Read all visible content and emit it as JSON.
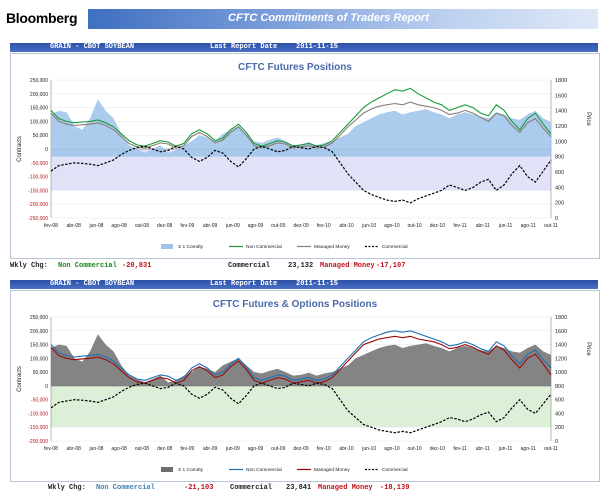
{
  "header": {
    "brand": "Bloomberg",
    "title": "CFTC Commitments of Traders Report"
  },
  "panels": [
    {
      "head_left": "GRAIN - CBOT SOYBEAN",
      "head_report": "Last Report Date",
      "head_date": "2011-11-15",
      "wkly": {
        "label": "Wkly Chg:",
        "nc_label": "Non Commercial",
        "nc_value": "-20,831",
        "c_label": "Commercial",
        "c_value": "23,132",
        "mm_label": "Managed Money",
        "mm_value": "-17,107"
      }
    },
    {
      "head_left": "GRAIN - CBOT SOYBEAN",
      "head_report": "Last Report Date",
      "head_date": "2011-11-15",
      "wkly": {
        "label": "Wkly Chg:",
        "nc_label": "Non Commercial",
        "nc_value": "-21,103",
        "c_label": "Commercial",
        "c_value": "23,841",
        "mm_label": "Managed Money",
        "mm_value": "-18,139"
      }
    }
  ],
  "chart_data": [
    {
      "type": "line",
      "title": "CFTC Futures Positions",
      "ylabel": "Contracts",
      "y2label": "Price",
      "ylim": [
        -250000,
        250000
      ],
      "yticks": [
        250000,
        200000,
        150000,
        100000,
        50000,
        0,
        -50000,
        -100000,
        -150000,
        -200000,
        -250000
      ],
      "ytick_labels": [
        "250,000",
        "200,000",
        "150,000",
        "100,000",
        "50,000",
        "0",
        "-50,000",
        "-100,000",
        "-150,000",
        "-200,000",
        "-250,000"
      ],
      "y2lim": [
        0,
        1800
      ],
      "y2ticks": [
        1800,
        1600,
        1400,
        1200,
        1000,
        800,
        600,
        400,
        200,
        0
      ],
      "x_labels": [
        "fev-08",
        "abr-08",
        "jun-08",
        "ago-08",
        "out-08",
        "dez-08",
        "fev-09",
        "abr-09",
        "jun-09",
        "ago-09",
        "out-09",
        "dez-09",
        "fev-10",
        "abr-10",
        "jun-10",
        "ago-10",
        "out-10",
        "dez-10",
        "fev-11",
        "abr-11",
        "jun-11",
        "ago-11",
        "out-11"
      ],
      "series": [
        {
          "name": "S 1 Comdty",
          "style": "area",
          "color": "#9dc3ea",
          "axis": "right",
          "values": [
            1350,
            1400,
            1380,
            1200,
            1150,
            1300,
            1550,
            1400,
            1300,
            1100,
            950,
            900,
            850,
            900,
            950,
            850,
            880,
            950,
            1000,
            1080,
            1050,
            1000,
            1100,
            1150,
            1200,
            1100,
            1000,
            980,
            1020,
            1050,
            1000,
            950,
            960,
            990,
            950,
            980,
            1000,
            1050,
            1100,
            1200,
            1250,
            1300,
            1350,
            1380,
            1400,
            1350,
            1380,
            1400,
            1420,
            1380,
            1350,
            1300,
            1350,
            1380,
            1350,
            1320,
            1300,
            1380,
            1350,
            1300,
            1280,
            1350,
            1400,
            1300,
            1250
          ]
        },
        {
          "name": "Non Commercial",
          "style": "line",
          "color": "#1a9a3a",
          "axis": "left",
          "values": [
            140000,
            110000,
            100000,
            95000,
            98000,
            100000,
            105000,
            95000,
            80000,
            55000,
            30000,
            15000,
            10000,
            20000,
            30000,
            25000,
            10000,
            20000,
            55000,
            70000,
            55000,
            30000,
            40000,
            70000,
            90000,
            60000,
            20000,
            10000,
            20000,
            30000,
            25000,
            10000,
            15000,
            20000,
            10000,
            15000,
            30000,
            60000,
            90000,
            120000,
            150000,
            170000,
            185000,
            200000,
            215000,
            210000,
            220000,
            200000,
            185000,
            170000,
            160000,
            140000,
            150000,
            160000,
            150000,
            130000,
            120000,
            160000,
            140000,
            100000,
            70000,
            110000,
            130000,
            90000,
            55000
          ]
        },
        {
          "name": "Managed Money",
          "style": "line",
          "color": "#8a7f78",
          "axis": "left",
          "values": [
            130000,
            100000,
            90000,
            85000,
            88000,
            90000,
            95000,
            85000,
            70000,
            45000,
            20000,
            8000,
            4000,
            12000,
            22000,
            18000,
            4000,
            12000,
            45000,
            60000,
            45000,
            22000,
            32000,
            60000,
            80000,
            50000,
            12000,
            4000,
            12000,
            22000,
            18000,
            4000,
            8000,
            12000,
            4000,
            8000,
            22000,
            50000,
            80000,
            105000,
            130000,
            145000,
            155000,
            160000,
            165000,
            160000,
            170000,
            160000,
            155000,
            150000,
            140000,
            125000,
            130000,
            140000,
            130000,
            115000,
            100000,
            130000,
            120000,
            85000,
            60000,
            95000,
            110000,
            75000,
            45000
          ]
        },
        {
          "name": "Commercial",
          "style": "dashed",
          "color": "#000000",
          "axis": "left",
          "values": [
            -80000,
            -60000,
            -55000,
            -50000,
            -52000,
            -55000,
            -60000,
            -50000,
            -40000,
            -20000,
            -5000,
            5000,
            10000,
            0,
            -10000,
            -5000,
            10000,
            0,
            -30000,
            -45000,
            -30000,
            -5000,
            -15000,
            -45000,
            -65000,
            -35000,
            0,
            10000,
            0,
            -10000,
            -5000,
            10000,
            5000,
            0,
            10000,
            5000,
            -10000,
            -50000,
            -90000,
            -120000,
            -150000,
            -165000,
            -175000,
            -185000,
            -190000,
            -185000,
            -195000,
            -180000,
            -170000,
            -160000,
            -150000,
            -130000,
            -140000,
            -150000,
            -140000,
            -120000,
            -110000,
            -150000,
            -130000,
            -90000,
            -60000,
            -100000,
            -120000,
            -80000,
            -40000
          ]
        }
      ]
    },
    {
      "type": "line",
      "title": "CFTC Futures & Options Positions",
      "ylabel": "Contracts",
      "y2label": "Price",
      "ylim": [
        -200000,
        250000
      ],
      "yticks": [
        250000,
        200000,
        150000,
        100000,
        50000,
        0,
        -50000,
        -100000,
        -150000,
        -200000
      ],
      "ytick_labels": [
        "250,000",
        "200,000",
        "150,000",
        "100,000",
        "50,000",
        "0",
        "-50,000",
        "-100,000",
        "-150,000",
        "-200,000"
      ],
      "y2lim": [
        0,
        1800
      ],
      "y2ticks": [
        1800,
        1600,
        1400,
        1200,
        1000,
        800,
        600,
        400,
        200,
        0
      ],
      "x_labels": [
        "fev-08",
        "abr-08",
        "jun-08",
        "ago-08",
        "out-08",
        "dez-08",
        "fev-09",
        "abr-09",
        "jun-09",
        "ago-09",
        "out-09",
        "dez-09",
        "fev-10",
        "abr-10",
        "jun-10",
        "ago-10",
        "out-10",
        "dez-10",
        "fev-11",
        "abr-11",
        "jun-11",
        "ago-11",
        "out-11"
      ],
      "series": [
        {
          "name": "S 1 Comdty",
          "style": "area",
          "color": "#6e6e6e",
          "axis": "right",
          "values": [
            1350,
            1400,
            1380,
            1200,
            1150,
            1300,
            1550,
            1400,
            1300,
            1100,
            950,
            900,
            850,
            900,
            950,
            850,
            880,
            950,
            1000,
            1080,
            1050,
            1000,
            1100,
            1150,
            1200,
            1100,
            1000,
            980,
            1020,
            1050,
            1000,
            950,
            960,
            990,
            950,
            980,
            1000,
            1050,
            1100,
            1200,
            1250,
            1300,
            1350,
            1380,
            1400,
            1350,
            1380,
            1400,
            1420,
            1380,
            1350,
            1300,
            1350,
            1380,
            1350,
            1320,
            1300,
            1380,
            1350,
            1300,
            1280,
            1350,
            1400,
            1300,
            1250
          ]
        },
        {
          "name": "Non Commercial",
          "style": "line",
          "color": "#1f6fb5",
          "axis": "left",
          "values": [
            150000,
            120000,
            110000,
            105000,
            108000,
            110000,
            115000,
            105000,
            90000,
            65000,
            40000,
            25000,
            20000,
            30000,
            40000,
            35000,
            20000,
            30000,
            65000,
            80000,
            65000,
            40000,
            50000,
            80000,
            100000,
            70000,
            30000,
            20000,
            30000,
            40000,
            35000,
            20000,
            25000,
            30000,
            20000,
            25000,
            40000,
            70000,
            100000,
            130000,
            160000,
            175000,
            185000,
            195000,
            200000,
            195000,
            200000,
            190000,
            180000,
            170000,
            160000,
            145000,
            150000,
            160000,
            150000,
            135000,
            125000,
            160000,
            145000,
            110000,
            80000,
            115000,
            130000,
            95000,
            65000
          ]
        },
        {
          "name": "Managed Money",
          "style": "line",
          "color": "#9a0a0a",
          "axis": "left",
          "values": [
            140000,
            110000,
            100000,
            95000,
            98000,
            100000,
            105000,
            95000,
            80000,
            55000,
            30000,
            15000,
            10000,
            20000,
            30000,
            25000,
            10000,
            20000,
            55000,
            70000,
            55000,
            30000,
            40000,
            70000,
            90000,
            60000,
            20000,
            10000,
            20000,
            30000,
            25000,
            10000,
            15000,
            20000,
            10000,
            15000,
            30000,
            60000,
            90000,
            120000,
            150000,
            160000,
            170000,
            175000,
            180000,
            175000,
            180000,
            170000,
            165000,
            160000,
            150000,
            135000,
            140000,
            150000,
            140000,
            125000,
            115000,
            145000,
            130000,
            95000,
            65000,
            100000,
            115000,
            80000,
            40000
          ]
        },
        {
          "name": "Commercial",
          "style": "dashed",
          "color": "#000000",
          "axis": "left",
          "values": [
            -80000,
            -60000,
            -55000,
            -50000,
            -52000,
            -55000,
            -60000,
            -50000,
            -40000,
            -20000,
            -5000,
            5000,
            10000,
            0,
            -10000,
            -5000,
            10000,
            0,
            -30000,
            -45000,
            -30000,
            -5000,
            -15000,
            -45000,
            -65000,
            -35000,
            0,
            10000,
            0,
            -10000,
            -5000,
            10000,
            5000,
            0,
            10000,
            5000,
            -10000,
            -50000,
            -90000,
            -115000,
            -140000,
            -150000,
            -160000,
            -165000,
            -170000,
            -165000,
            -170000,
            -160000,
            -150000,
            -140000,
            -130000,
            -115000,
            -120000,
            -130000,
            -120000,
            -105000,
            -95000,
            -130000,
            -115000,
            -80000,
            -50000,
            -85000,
            -100000,
            -65000,
            -30000
          ]
        }
      ]
    }
  ]
}
